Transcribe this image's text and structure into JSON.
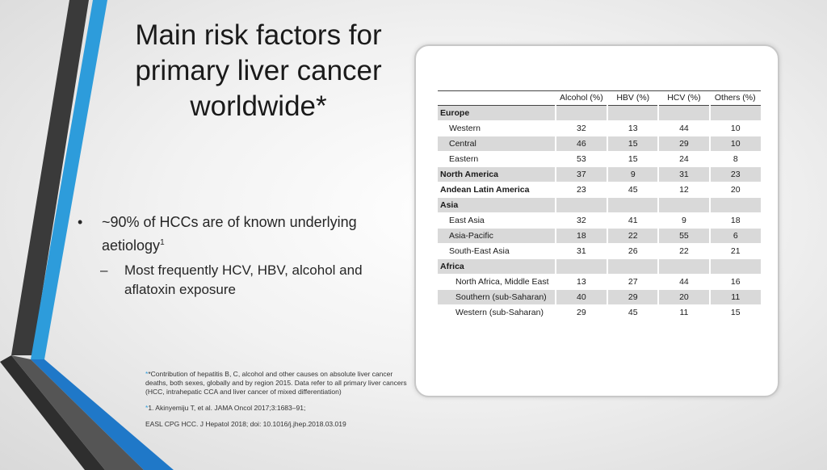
{
  "slide": {
    "title": "Main risk factors for primary liver cancer worldwide*",
    "bullets": {
      "main": "~90% of HCCs are of known underlying aetiology",
      "main_sup": "1",
      "sub": "Most frequently HCV, HBV, alcohol and aflatoxin exposure"
    },
    "footnotes": {
      "f1_star": "*",
      "f1": "*Contribution of hepatitis B, C, alcohol and other causes on absolute liver cancer deaths, both sexes, globally and by region 2015. Data refer to all primary liver cancers (HCC, intrahepatic CCA and liver cancer of mixed differentiation)",
      "f2_star": "*",
      "f2": "1. Akinyemiju T, et al. JAMA Oncol 2017;3:1683–91;",
      "f3": "EASL CPG HCC. J Hepatol 2018; doi: 10.1016/j.jhep.2018.03.019"
    }
  },
  "table": {
    "headers": [
      "",
      "Alcohol (%)",
      "HBV (%)",
      "HCV (%)",
      "Others (%)"
    ],
    "rows": [
      {
        "name": "Europe",
        "level": "group",
        "shade": true,
        "values": [
          "",
          "",
          "",
          ""
        ]
      },
      {
        "name": "Western",
        "level": "l1",
        "shade": false,
        "values": [
          "32",
          "13",
          "44",
          "10"
        ]
      },
      {
        "name": "Central",
        "level": "l1",
        "shade": true,
        "values": [
          "46",
          "15",
          "29",
          "10"
        ]
      },
      {
        "name": "Eastern",
        "level": "l1",
        "shade": false,
        "values": [
          "53",
          "15",
          "24",
          "8"
        ]
      },
      {
        "name": "North America",
        "level": "group",
        "shade": true,
        "values": [
          "37",
          "9",
          "31",
          "23"
        ]
      },
      {
        "name": "Andean Latin America",
        "level": "group",
        "shade": false,
        "values": [
          "23",
          "45",
          "12",
          "20"
        ]
      },
      {
        "name": "Asia",
        "level": "group",
        "shade": true,
        "values": [
          "",
          "",
          "",
          ""
        ]
      },
      {
        "name": "East Asia",
        "level": "l1",
        "shade": false,
        "values": [
          "32",
          "41",
          "9",
          "18"
        ]
      },
      {
        "name": "Asia-Pacific",
        "level": "l1",
        "shade": true,
        "values": [
          "18",
          "22",
          "55",
          "6"
        ]
      },
      {
        "name": "South-East Asia",
        "level": "l1",
        "shade": false,
        "values": [
          "31",
          "26",
          "22",
          "21"
        ]
      },
      {
        "name": "Africa",
        "level": "group",
        "shade": true,
        "values": [
          "",
          "",
          "",
          ""
        ]
      },
      {
        "name": "North Africa, Middle East",
        "level": "l2",
        "shade": false,
        "values": [
          "13",
          "27",
          "44",
          "16"
        ]
      },
      {
        "name": "Southern (sub-Saharan)",
        "level": "l2",
        "shade": true,
        "values": [
          "40",
          "29",
          "20",
          "11"
        ]
      },
      {
        "name": "Western (sub-Saharan)",
        "level": "l2",
        "shade": false,
        "values": [
          "29",
          "45",
          "11",
          "15"
        ]
      }
    ]
  },
  "colors": {
    "accent_blue": "#2d9cdb",
    "dark_stripe": "#3a3a3a",
    "row_shade": "#d9d9d9"
  }
}
